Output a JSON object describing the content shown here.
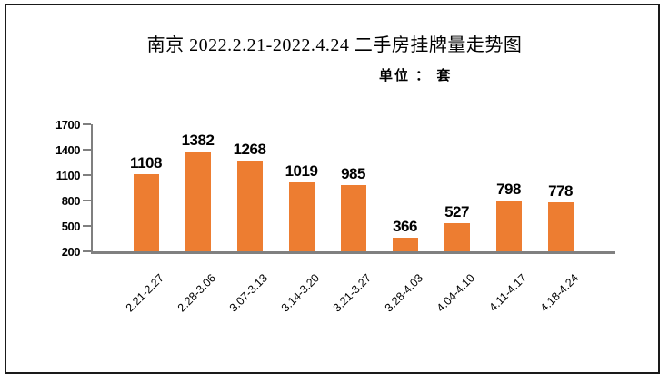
{
  "chart_data": {
    "type": "bar",
    "title": "南京 2022.2.21-2022.4.24 二手房挂牌量走势图",
    "subtitle": "单位 ： 套",
    "categories": [
      "2.21-2.27",
      "2.28-3.06",
      "3.07-3.13",
      "3.14-3.20",
      "3.21-3.27",
      "3.28-4.03",
      "4.04-4.10",
      "4.11-4.17",
      "4.18-4.24"
    ],
    "values": [
      1108,
      1382,
      1268,
      1019,
      985,
      366,
      527,
      798,
      778
    ],
    "yticks": [
      1700,
      1400,
      1100,
      800,
      500,
      200
    ],
    "ylim": [
      200,
      1700
    ],
    "xlabel": "",
    "ylabel": "",
    "grid": false,
    "legend_position": "none",
    "bar_color": "#ED7D31",
    "axis_color": "#7f7f7f",
    "text_color": "#000000",
    "frame_border_color": "#1a1a1a"
  }
}
